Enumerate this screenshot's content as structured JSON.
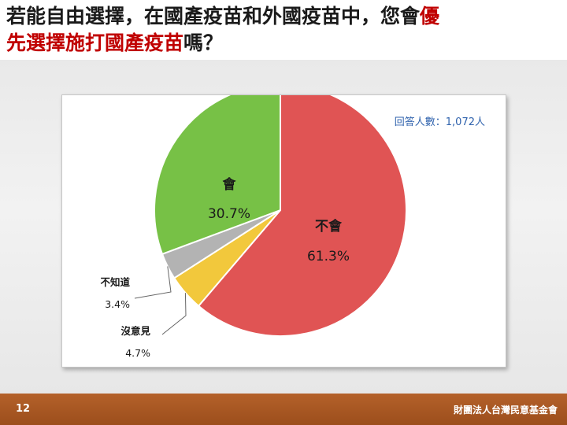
{
  "slide": {
    "title_line1_a": "若能自由選擇，在國產疫苗和外國疫苗中，您會",
    "title_line1_b": "優",
    "title_line2_a": "先選擇施打國產疫苗",
    "title_line2_b": "嗎？",
    "accent_color": "#c00000",
    "page_number": "12",
    "organization": "財團法人台灣民意基金會"
  },
  "chart_data": {
    "type": "pie",
    "note": "回答人數：1,072人",
    "slices": [
      {
        "label": "不會",
        "value": 61.3,
        "value_label": "61.3%",
        "color": "#e05454"
      },
      {
        "label": "沒意見",
        "value": 4.7,
        "value_label": "4.7%",
        "color": "#f2c83c"
      },
      {
        "label": "不知道",
        "value": 3.4,
        "value_label": "3.4%",
        "color": "#b3b3b3"
      },
      {
        "label": "會",
        "value": 30.7,
        "value_label": "30.7%",
        "color": "#77c146"
      }
    ]
  }
}
